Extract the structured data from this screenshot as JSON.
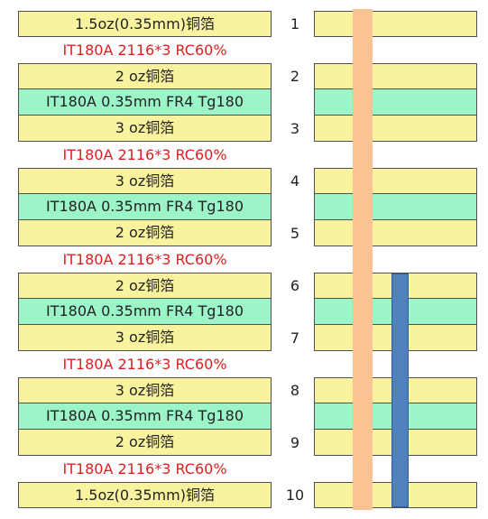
{
  "layers": [
    {
      "kind": "copper",
      "label": "1.5oz(0.35mm)铜箔",
      "num": "1"
    },
    {
      "kind": "prepreg",
      "label": "IT180A 2116*3 RC60%"
    },
    {
      "kind": "copper",
      "label": "2 oz铜箔",
      "num": "2"
    },
    {
      "kind": "core",
      "label": "IT180A 0.35mm FR4 Tg180"
    },
    {
      "kind": "copper",
      "label": "3 oz铜箔",
      "num": "3"
    },
    {
      "kind": "prepreg",
      "label": "IT180A 2116*3 RC60%"
    },
    {
      "kind": "copper",
      "label": "3 oz铜箔",
      "num": "4"
    },
    {
      "kind": "core",
      "label": "IT180A 0.35mm FR4 Tg180"
    },
    {
      "kind": "copper",
      "label": "2 oz铜箔",
      "num": "5"
    },
    {
      "kind": "prepreg",
      "label": "IT180A 2116*3 RC60%"
    },
    {
      "kind": "copper",
      "label": "2 oz铜箔",
      "num": "6"
    },
    {
      "kind": "core",
      "label": "IT180A 0.35mm FR4 Tg180"
    },
    {
      "kind": "copper",
      "label": "3 oz铜箔",
      "num": "7"
    },
    {
      "kind": "prepreg",
      "label": "IT180A 2116*3 RC60%"
    },
    {
      "kind": "copper",
      "label": "3 oz铜箔",
      "num": "8"
    },
    {
      "kind": "core",
      "label": "IT180A 0.35mm FR4 Tg180"
    },
    {
      "kind": "copper",
      "label": "2 oz铜箔",
      "num": "9"
    },
    {
      "kind": "prepreg",
      "label": "IT180A 2116*3 RC60%"
    },
    {
      "kind": "copper",
      "label": "1.5oz(0.35mm)铜箔",
      "num": "10"
    }
  ],
  "colors": {
    "copper": "#f9f29e",
    "core": "#9cf5c8",
    "prepreg_text": "#e02020",
    "through_via": "#f9c393",
    "blind_via": "#4f81bd"
  },
  "vias": [
    {
      "name": "through-via",
      "from_layer": "1",
      "to_layer": "10"
    },
    {
      "name": "blind-via",
      "from_layer": "6",
      "to_layer": "10"
    }
  ]
}
